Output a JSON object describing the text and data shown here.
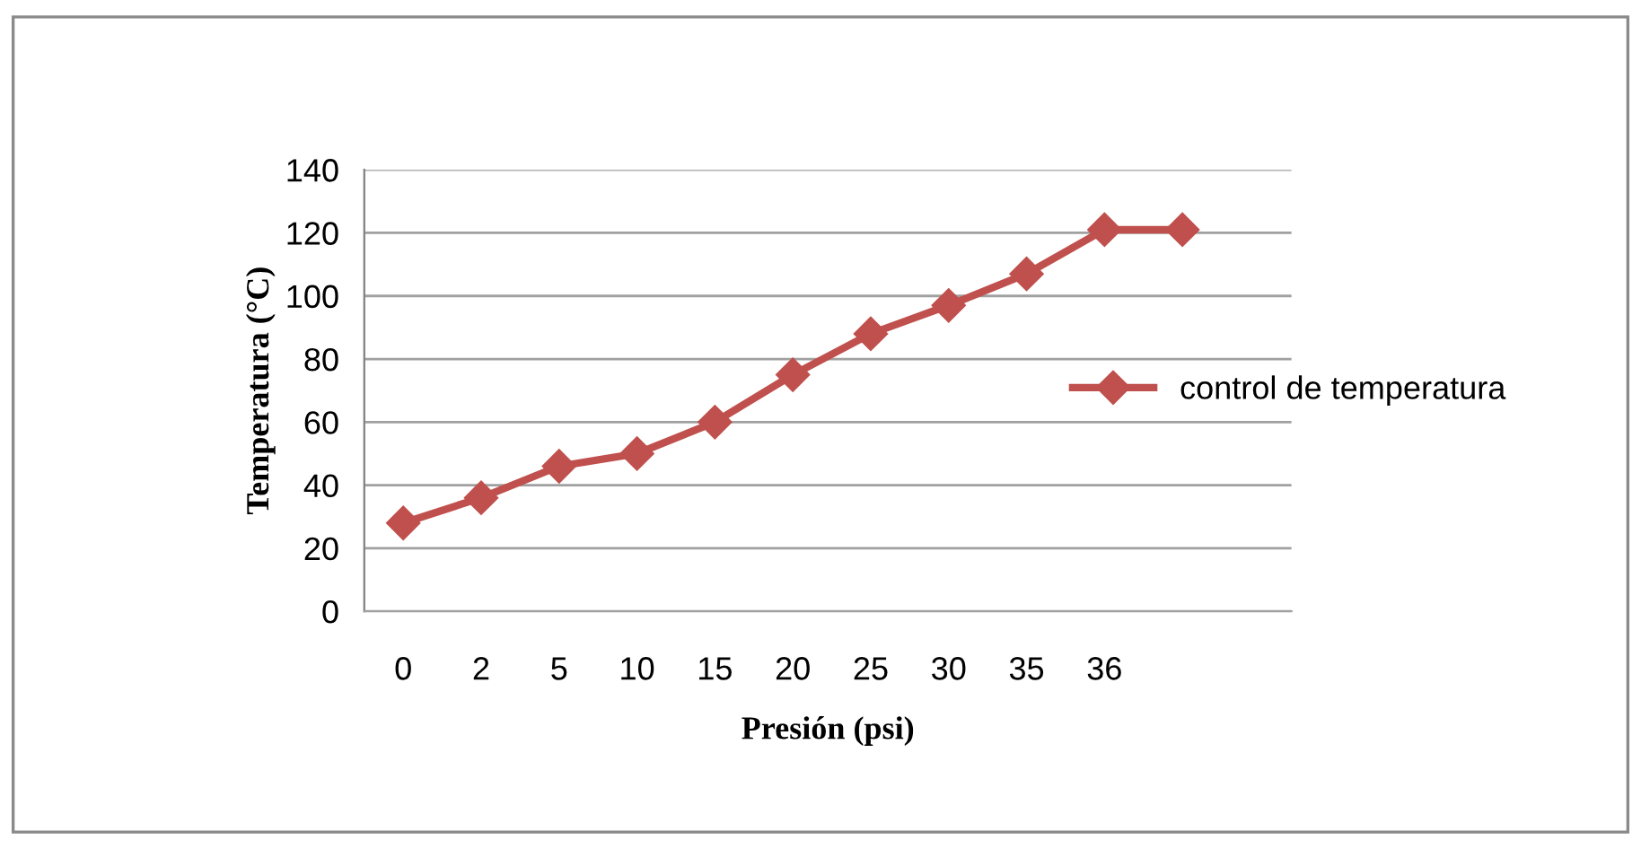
{
  "chart_data": {
    "type": "line",
    "xlabel": "Presión (psi)",
    "ylabel": "Temperatura (°C)",
    "categories": [
      "0",
      "2",
      "5",
      "10",
      "15",
      "20",
      "25",
      "30",
      "35",
      "36",
      null
    ],
    "series": [
      {
        "name": "control de temperatura",
        "color": "#c0504d",
        "values": [
          28,
          36,
          46,
          50,
          60,
          75,
          88,
          97,
          107,
          121,
          121
        ]
      }
    ],
    "ylim": [
      0,
      140
    ],
    "yticks": [
      0,
      20,
      40,
      60,
      80,
      100,
      120,
      140
    ],
    "grid": "y",
    "legend": "right",
    "marker": "diamond",
    "line_style": "solid"
  }
}
